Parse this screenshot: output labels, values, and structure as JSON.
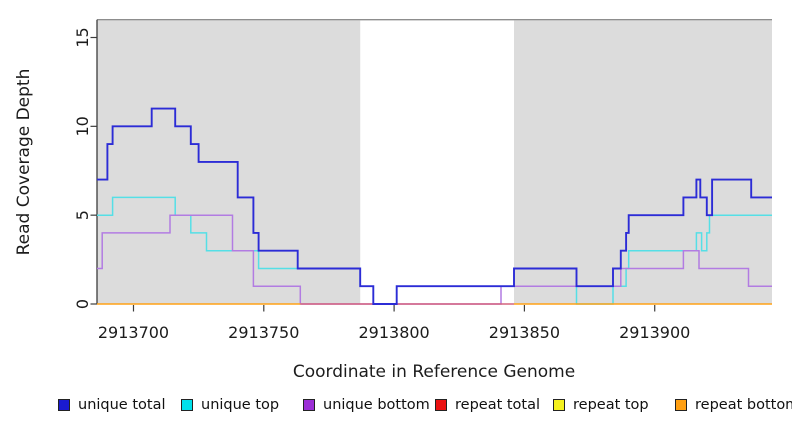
{
  "chart_data": {
    "type": "line",
    "subtype": "step",
    "title": "",
    "xlabel": "Coordinate in Reference Genome",
    "ylabel": "Read Coverage Depth",
    "xlim": [
      2913686,
      2913945
    ],
    "ylim": [
      0,
      15
    ],
    "plot_top_value": 16,
    "grid": false,
    "legend_position": "bottom",
    "x_ticks": [
      2913700,
      2913750,
      2913800,
      2913850,
      2913900
    ],
    "x_tick_labels": [
      "2913700",
      "2913750",
      "2913800",
      "2913850",
      "2913900"
    ],
    "y_ticks": [
      0,
      5,
      10,
      15
    ],
    "y_tick_labels": [
      "0",
      "5",
      "10",
      "15"
    ],
    "region_fill": "#dcdcdc",
    "region_outline_color": "#8d8d8d",
    "axis_color": "#3c3c3c",
    "background_regions": [
      {
        "start": 2913686,
        "end": 2913787
      },
      {
        "start": 2913846,
        "end": 2913945
      }
    ],
    "series": [
      {
        "name": "unique top",
        "color": "#55dfe6",
        "width": 1.5,
        "segments": [
          {
            "end": 2913945,
            "points": [
              [
                2913686,
                5
              ],
              [
                2913692,
                6
              ],
              [
                2913716,
                5
              ],
              [
                2913722,
                4
              ],
              [
                2913728,
                3
              ],
              [
                2913748,
                2
              ],
              [
                2913787,
                1
              ],
              [
                2913792,
                0
              ],
              [
                2913801,
                1
              ],
              [
                2913870,
                0
              ],
              [
                2913884,
                1
              ],
              [
                2913889,
                2
              ],
              [
                2913890,
                3
              ],
              [
                2913916,
                4
              ],
              [
                2913918,
                3
              ],
              [
                2913920,
                4
              ],
              [
                2913921,
                5
              ]
            ]
          }
        ]
      },
      {
        "name": "unique bottom",
        "color": "#b27ce2",
        "width": 1.5,
        "segments": [
          {
            "end": 2913945,
            "points": [
              [
                2913686,
                2
              ],
              [
                2913688,
                4
              ],
              [
                2913714,
                5
              ],
              [
                2913738,
                3
              ],
              [
                2913746,
                1
              ],
              [
                2913764,
                0
              ],
              [
                2913841,
                1
              ],
              [
                2913887,
                2
              ],
              [
                2913911,
                3
              ],
              [
                2913917,
                2
              ],
              [
                2913936,
                1
              ]
            ]
          }
        ]
      },
      {
        "name": "repeat total",
        "color": "#d4637f",
        "width": 1.5,
        "segments": [
          {
            "end": 2913846,
            "points": [
              [
                2913764,
                0
              ]
            ]
          }
        ]
      },
      {
        "name": "unique total",
        "color": "#2c2cd6",
        "width": 1.9,
        "segments": [
          {
            "end": 2913945,
            "points": [
              [
                2913686,
                7
              ],
              [
                2913690,
                9
              ],
              [
                2913692,
                10
              ],
              [
                2913707,
                11
              ],
              [
                2913716,
                10
              ],
              [
                2913722,
                9
              ],
              [
                2913725,
                8
              ],
              [
                2913740,
                6
              ],
              [
                2913746,
                4
              ],
              [
                2913748,
                3
              ],
              [
                2913763,
                2
              ],
              [
                2913787,
                1
              ],
              [
                2913792,
                0
              ],
              [
                2913801,
                1
              ],
              [
                2913846,
                2
              ],
              [
                2913870,
                1
              ],
              [
                2913884,
                2
              ],
              [
                2913887,
                3
              ],
              [
                2913889,
                4
              ],
              [
                2913890,
                5
              ],
              [
                2913911,
                6
              ],
              [
                2913916,
                7
              ],
              [
                2913917.5,
                6
              ],
              [
                2913920,
                5
              ],
              [
                2913922,
                7
              ],
              [
                2913937,
                6
              ]
            ]
          }
        ]
      },
      {
        "name": "repeat top",
        "color": "#f2ef1f",
        "width": 1.5,
        "segments": []
      },
      {
        "name": "repeat bottom",
        "color": "#ffa216",
        "width": 1.6,
        "segments": [
          {
            "end": 2913764,
            "points": [
              [
                2913686,
                0
              ]
            ]
          },
          {
            "end": 2913945,
            "points": [
              [
                2913846,
                0
              ]
            ]
          }
        ]
      }
    ],
    "legend": [
      {
        "label": "unique total",
        "color": "#1a1ad1"
      },
      {
        "label": "unique top",
        "color": "#00e0ea"
      },
      {
        "label": "unique bottom",
        "color": "#9c2fd6"
      },
      {
        "label": "repeat total",
        "color": "#ea1111"
      },
      {
        "label": "repeat top",
        "color": "#f4f11f"
      },
      {
        "label": "repeat bottom",
        "color": "#ff9f12"
      }
    ]
  }
}
